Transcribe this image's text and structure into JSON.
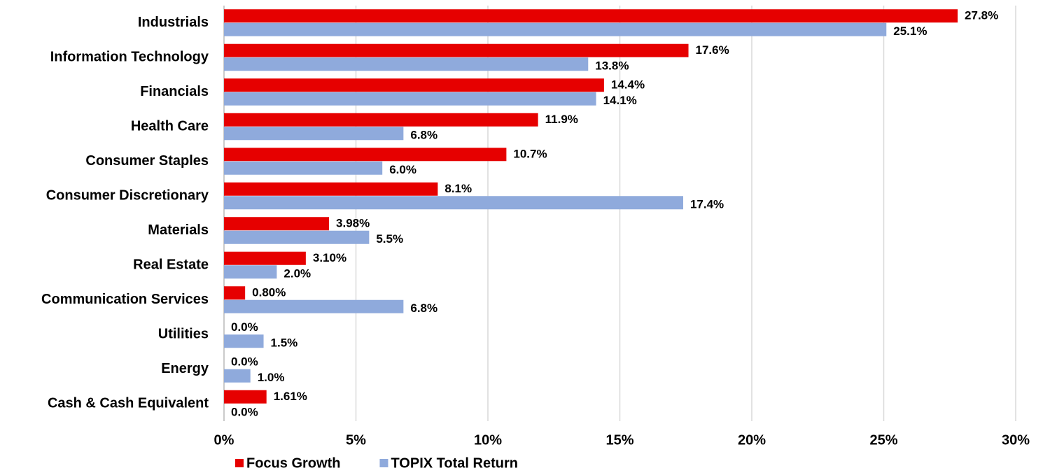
{
  "chart_data": {
    "type": "barh",
    "categories": [
      "Industrials",
      "Information Technology",
      "Financials",
      "Health Care",
      "Consumer Staples",
      "Consumer Discretionary",
      "Materials",
      "Real Estate",
      "Communication Services",
      "Utilities",
      "Energy",
      "Cash & Cash Equivalent"
    ],
    "series": [
      {
        "name": "Focus Growth",
        "color": "#e60000",
        "values": [
          27.8,
          17.6,
          14.4,
          11.9,
          10.7,
          8.1,
          3.98,
          3.1,
          0.8,
          0.0,
          0.0,
          1.61
        ],
        "value_labels": [
          "27.8%",
          "17.6%",
          "14.4%",
          "11.9%",
          "10.7%",
          "8.1%",
          "3.98%",
          "3.10%",
          "0.80%",
          "0.0%",
          "0.0%",
          "1.61%"
        ]
      },
      {
        "name": "TOPIX Total Return",
        "color": "#8faadc",
        "values": [
          25.1,
          13.8,
          14.1,
          6.8,
          6.0,
          17.4,
          5.5,
          2.0,
          6.8,
          1.5,
          1.0,
          0.0
        ],
        "value_labels": [
          "25.1%",
          "13.8%",
          "14.1%",
          "6.8%",
          "6.0%",
          "17.4%",
          "5.5%",
          "2.0%",
          "6.8%",
          "1.5%",
          "1.0%",
          "0.0%"
        ]
      }
    ],
    "xlim": [
      0,
      30
    ],
    "xticks": [
      {
        "value": 0,
        "label": "0%"
      },
      {
        "value": 5,
        "label": "5%"
      },
      {
        "value": 10,
        "label": "10%"
      },
      {
        "value": 15,
        "label": "15%"
      },
      {
        "value": 20,
        "label": "20%"
      },
      {
        "value": 25,
        "label": "25%"
      },
      {
        "value": 30,
        "label": "30%"
      }
    ],
    "grid": true,
    "legend": "bottom"
  }
}
